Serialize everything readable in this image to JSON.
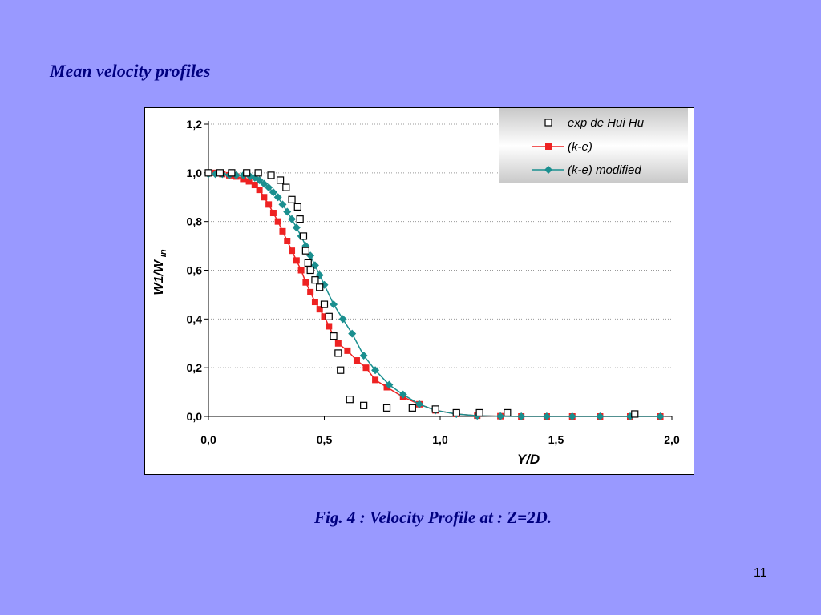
{
  "slide": {
    "heading": "Mean velocity profiles",
    "caption": "Fig. 4 : Velocity Profile at : Z=2D.",
    "page_number": "11",
    "background_color": "#9999ff",
    "text_color": "#000080"
  },
  "chart_data": {
    "type": "line",
    "title": "",
    "xlabel": "Y/D",
    "ylabel_main": "W1/W",
    "ylabel_sub": "in",
    "xlim": [
      0,
      2
    ],
    "ylim": [
      0,
      1.2
    ],
    "x_ticks": [
      0,
      0.5,
      1,
      1.5,
      2
    ],
    "x_tick_labels": [
      "0,0",
      "0,5",
      "1,0",
      "1,5",
      "2,0"
    ],
    "y_ticks": [
      0,
      0.2,
      0.4,
      0.6,
      0.8,
      1,
      1.2
    ],
    "y_tick_labels": [
      "0,0",
      "0,2",
      "0,4",
      "0,6",
      "0,8",
      "1,0",
      "1,2"
    ],
    "grid": "horizontal dotted",
    "legend_position": "top-right",
    "series": [
      {
        "name": "exp de Hui Hu",
        "kind": "markers",
        "marker": "hollow-square",
        "color": "#000000",
        "x": [
          0.0,
          0.05,
          0.1,
          0.165,
          0.215,
          0.27,
          0.31,
          0.335,
          0.36,
          0.385,
          0.395,
          0.41,
          0.42,
          0.43,
          0.44,
          0.46,
          0.48,
          0.5,
          0.52,
          0.54,
          0.56,
          0.57,
          0.61,
          0.67,
          0.77,
          0.88,
          0.98,
          1.07,
          1.17,
          1.29,
          1.84
        ],
        "y": [
          1.0,
          1.0,
          1.0,
          1.0,
          1.0,
          0.99,
          0.97,
          0.94,
          0.89,
          0.86,
          0.81,
          0.74,
          0.68,
          0.63,
          0.6,
          0.56,
          0.53,
          0.46,
          0.41,
          0.33,
          0.26,
          0.19,
          0.07,
          0.045,
          0.035,
          0.035,
          0.03,
          0.015,
          0.015,
          0.015,
          0.01
        ]
      },
      {
        "name": "(k-e)",
        "kind": "line+markers",
        "marker": "filled-square",
        "color": "#ee2222",
        "x": [
          0.0,
          0.03,
          0.06,
          0.09,
          0.12,
          0.15,
          0.175,
          0.2,
          0.22,
          0.24,
          0.26,
          0.28,
          0.3,
          0.32,
          0.34,
          0.36,
          0.38,
          0.4,
          0.42,
          0.44,
          0.46,
          0.48,
          0.5,
          0.52,
          0.54,
          0.56,
          0.6,
          0.64,
          0.68,
          0.72,
          0.77,
          0.84,
          0.91,
          0.98,
          1.07,
          1.16,
          1.26,
          1.35,
          1.46,
          1.57,
          1.69,
          1.82,
          1.95
        ],
        "y": [
          1.0,
          1.0,
          0.995,
          0.99,
          0.985,
          0.975,
          0.965,
          0.95,
          0.93,
          0.9,
          0.87,
          0.835,
          0.8,
          0.76,
          0.72,
          0.68,
          0.64,
          0.6,
          0.55,
          0.51,
          0.47,
          0.44,
          0.41,
          0.37,
          0.33,
          0.3,
          0.27,
          0.23,
          0.2,
          0.15,
          0.12,
          0.08,
          0.05,
          0.025,
          0.01,
          0.003,
          0.001,
          0.0,
          0.0,
          0.0,
          0.0,
          0.0,
          0.0
        ]
      },
      {
        "name": "(k-e) modified",
        "kind": "line+markers",
        "marker": "filled-diamond",
        "color": "#1a8f8f",
        "x": [
          0.0,
          0.03,
          0.06,
          0.09,
          0.12,
          0.15,
          0.18,
          0.2,
          0.22,
          0.24,
          0.26,
          0.28,
          0.3,
          0.32,
          0.34,
          0.36,
          0.38,
          0.4,
          0.42,
          0.44,
          0.46,
          0.48,
          0.5,
          0.54,
          0.58,
          0.62,
          0.67,
          0.72,
          0.78,
          0.84,
          0.91,
          0.98,
          1.07,
          1.16,
          1.26,
          1.35,
          1.46,
          1.57,
          1.69,
          1.82,
          1.95
        ],
        "y": [
          0.995,
          0.995,
          0.995,
          0.99,
          0.99,
          0.99,
          0.985,
          0.98,
          0.97,
          0.955,
          0.94,
          0.92,
          0.9,
          0.87,
          0.84,
          0.81,
          0.775,
          0.74,
          0.7,
          0.66,
          0.62,
          0.58,
          0.54,
          0.46,
          0.4,
          0.34,
          0.25,
          0.19,
          0.13,
          0.09,
          0.05,
          0.025,
          0.01,
          0.003,
          0.001,
          0.0,
          0.0,
          0.0,
          0.0,
          0.0,
          0.0
        ]
      }
    ]
  }
}
